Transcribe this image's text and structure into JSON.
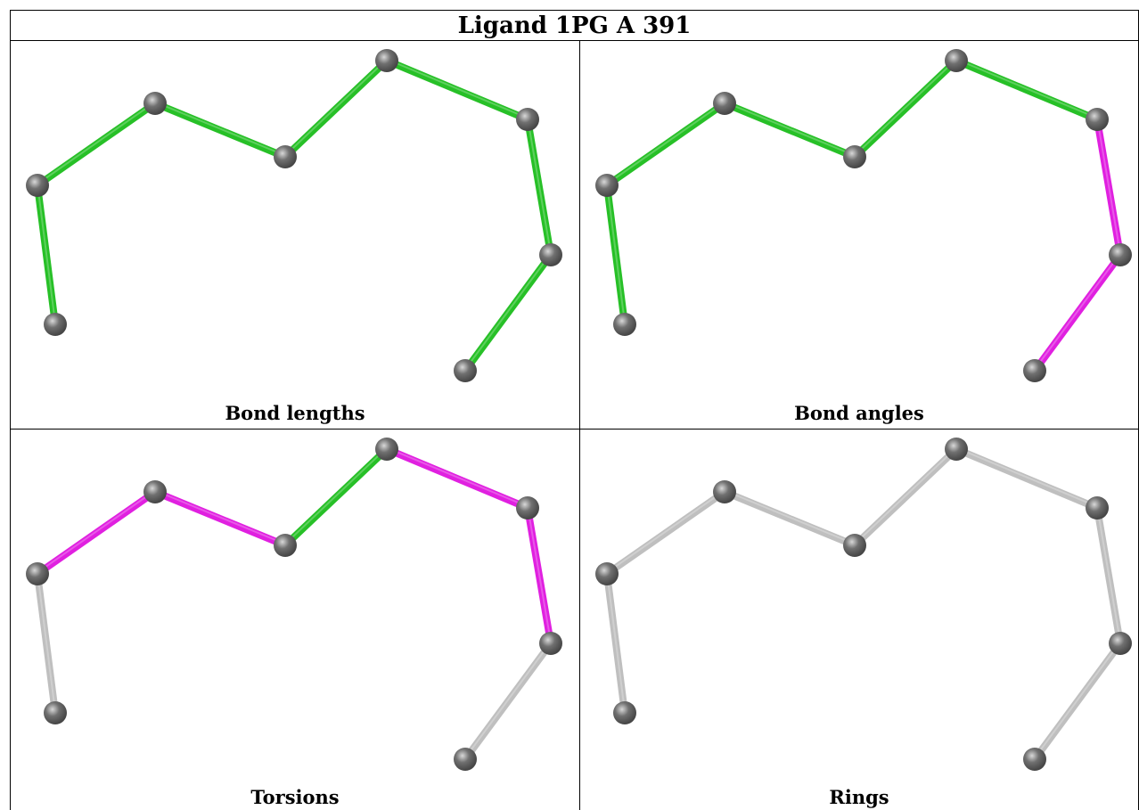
{
  "title": "Ligand 1PG A 391",
  "colors": {
    "green": "#27c027",
    "magenta": "#e020e0",
    "grey": "#bfbfbf",
    "atom": "#707070"
  },
  "panels": [
    {
      "caption": "Bond lengths",
      "bond_colors": [
        "green",
        "green",
        "green",
        "green",
        "green",
        "green",
        "green",
        "green"
      ]
    },
    {
      "caption": "Bond angles",
      "bond_colors": [
        "green",
        "green",
        "green",
        "green",
        "green",
        "magenta",
        "magenta",
        "green"
      ]
    },
    {
      "caption": "Torsions",
      "bond_colors": [
        "grey",
        "magenta",
        "magenta",
        "green",
        "magenta",
        "magenta",
        "grey",
        "grey"
      ]
    },
    {
      "caption": "Rings",
      "bond_colors": [
        "grey",
        "grey",
        "grey",
        "grey",
        "grey",
        "grey",
        "grey",
        "grey"
      ]
    }
  ]
}
